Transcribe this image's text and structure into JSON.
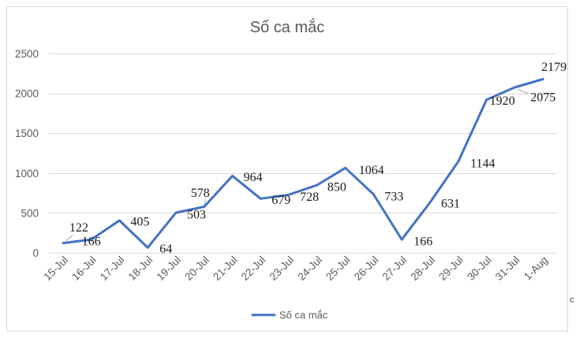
{
  "chart_data": {
    "type": "line",
    "title": "Số ca mắc",
    "categories": [
      "15-Jul",
      "16-Jul",
      "17-Jul",
      "18-Jul",
      "19-Jul",
      "20-Jul",
      "21-Jul",
      "22-Jul",
      "23-Jul",
      "24-Jul",
      "25-Jul",
      "26-Jul",
      "27-Jul",
      "28-Jul",
      "29-Jul",
      "30-Jul",
      "31-Jul",
      "1-Aug"
    ],
    "series": [
      {
        "name": "Số ca mắc",
        "values": [
          122,
          166,
          405,
          64,
          503,
          578,
          964,
          679,
          728,
          850,
          1064,
          733,
          166,
          631,
          1144,
          1920,
          2075,
          2179
        ],
        "color": "#4472C4"
      }
    ],
    "ylim": [
      0,
      2500
    ],
    "yticks": [
      0,
      500,
      1000,
      1500,
      2000,
      2500
    ],
    "grid": true,
    "data_labels": true,
    "legend": "bottom"
  },
  "colors": {
    "series": "#4472C4",
    "text": "#595959",
    "gridline": "#D9D9D9",
    "border": "#D9D9D9"
  },
  "page": {
    "edge_fragment": "c"
  }
}
